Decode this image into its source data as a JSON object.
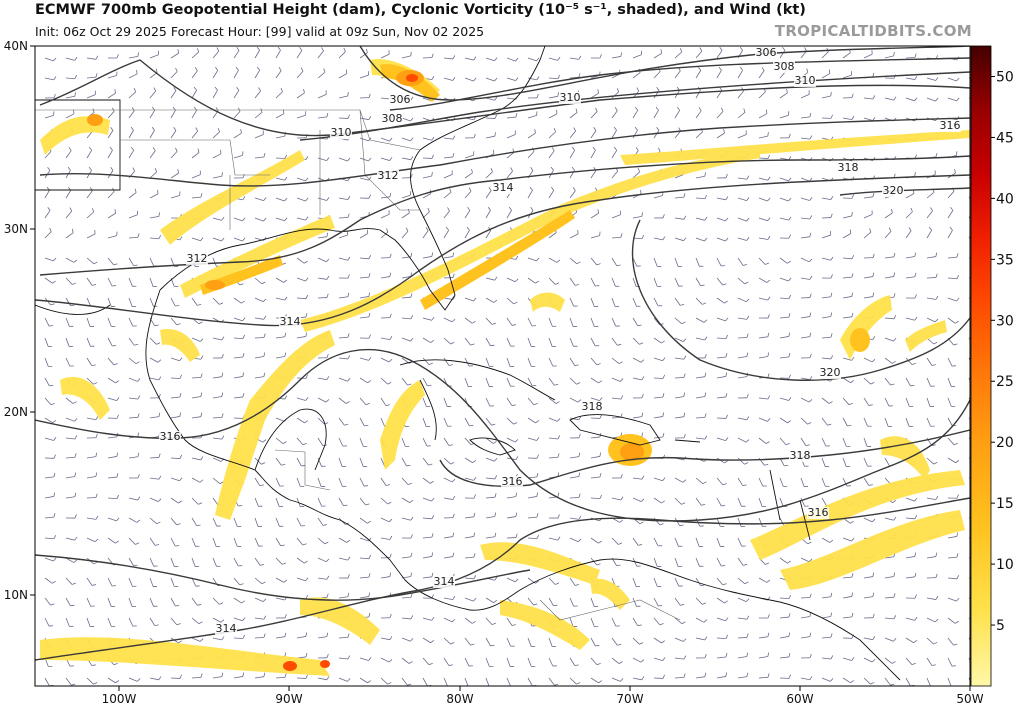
{
  "header": {
    "title": "ECMWF 700mb Geopotential Height (dam), Cyclonic Vorticity (10⁻⁵ s⁻¹, shaded), and Wind (kt)",
    "subtitle": "Init: 06z Oct 29 2025   Forecast Hour: [99]   valid at 09z Sun, Nov 02 2025",
    "brand": "TROPICALTIDBITS.COM"
  },
  "axes": {
    "lat_labels": [
      "40N",
      "30N",
      "20N",
      "10N"
    ],
    "lon_labels": [
      "100W",
      "90W",
      "80W",
      "70W",
      "60W",
      "50W"
    ]
  },
  "colorbar": {
    "ticks": [
      "5",
      "10",
      "15",
      "20",
      "25",
      "30",
      "35",
      "40",
      "45",
      "50"
    ],
    "colors": [
      "#fff7a8",
      "#ffe14a",
      "#ffc21f",
      "#ff9f12",
      "#ff7408",
      "#ff4a00",
      "#f01f00",
      "#c80000",
      "#980000",
      "#6c0000",
      "#450000"
    ]
  },
  "contour_labels": [
    "306",
    "308",
    "310",
    "306",
    "308",
    "310",
    "310",
    "312",
    "314",
    "316",
    "318",
    "320",
    "312",
    "314",
    "316",
    "316",
    "318",
    "318",
    "320",
    "316",
    "314",
    "314"
  ]
}
